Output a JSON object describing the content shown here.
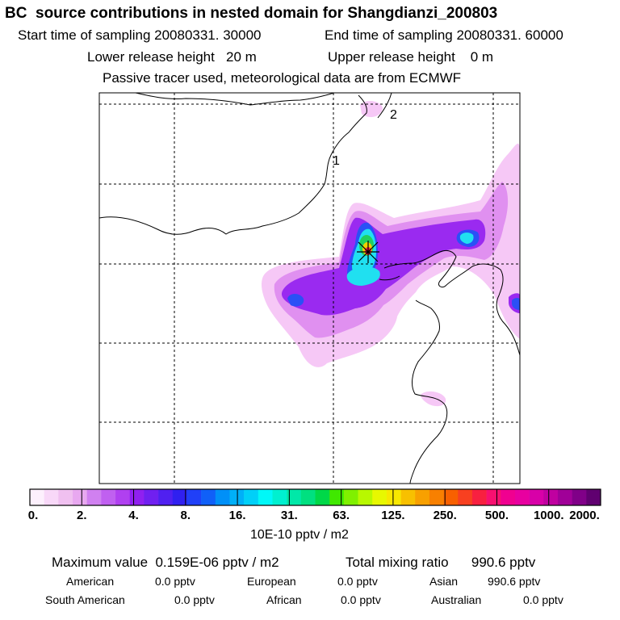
{
  "header": {
    "title": "BC  source contributions in nested domain for Shangdianzi_200803",
    "start_time": "Start time of sampling 20080331. 30000",
    "end_time": "End time of sampling 20080331. 60000",
    "lower_release": "Lower release height   20 m",
    "upper_release": "Upper release height    0 m",
    "tracer_note": "Passive tracer used, meteorological data are from ECMWF"
  },
  "map": {
    "labels": [
      "1",
      "2"
    ]
  },
  "colorbar": {
    "colors": [
      "#fdf0fd",
      "#f8d8f8",
      "#f0c0f0",
      "#e8a8f0",
      "#d080f0",
      "#c060f0",
      "#b040f0",
      "#9020f0",
      "#7020f0",
      "#5020f0",
      "#3020f0",
      "#2040f8",
      "#1060f8",
      "#0090f8",
      "#00b0f8",
      "#00d0f8",
      "#00f8f8",
      "#00f0d0",
      "#00e8a8",
      "#00e080",
      "#00d848",
      "#40e800",
      "#80f000",
      "#b8f800",
      "#e8f800",
      "#f8e800",
      "#f8c000",
      "#f8a000",
      "#f88000",
      "#f86000",
      "#f84020",
      "#f82040",
      "#f81070",
      "#f00090",
      "#e800a0",
      "#d800a8",
      "#c000a0",
      "#a00098",
      "#800088",
      "#600070"
    ],
    "tick_labels": [
      "0.",
      "2.",
      "4.",
      "8.",
      "16.",
      "31.",
      "63.",
      "125.",
      "250.",
      "500.",
      "1000.",
      "2000."
    ],
    "units": "10E-10 pptv / m2"
  },
  "summary": {
    "max_value": "Maximum value  0.159E-06 pptv / m2",
    "total_mixing": "Total mixing ratio      990.6 pptv",
    "regions": [
      {
        "name": "American",
        "value": "0.0 pptv"
      },
      {
        "name": "European",
        "value": "0.0 pptv"
      },
      {
        "name": "Asian",
        "value": "990.6 pptv"
      },
      {
        "name": "South American",
        "value": "0.0 pptv"
      },
      {
        "name": "African",
        "value": "0.0 pptv"
      },
      {
        "name": "Australian",
        "value": "0.0 pptv"
      }
    ]
  }
}
